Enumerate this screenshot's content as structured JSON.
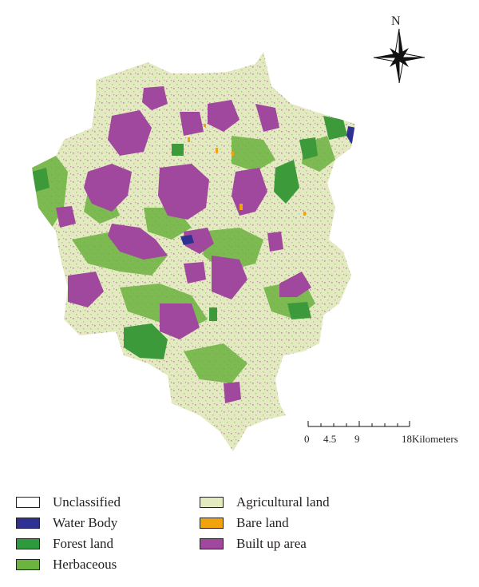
{
  "north_arrow": {
    "label": "N",
    "icon": "north-arrow-icon"
  },
  "scale_bar": {
    "ticks": [
      "0",
      "4.5",
      "9",
      "18Kilometers"
    ]
  },
  "legend": [
    {
      "label": "Unclassified",
      "color": "#ffffff"
    },
    {
      "label": "Water Body",
      "color": "#2e3192"
    },
    {
      "label": "Forest land",
      "color": "#2e9a3e"
    },
    {
      "label": "Herbaceous",
      "color": "#6db33f"
    },
    {
      "label": "Agricultural land",
      "color": "#e3eabf"
    },
    {
      "label": "Bare land",
      "color": "#f0a30a"
    },
    {
      "label": "Built up area",
      "color": "#a0479e"
    }
  ],
  "colors": {
    "agricultural": "#e3eabf",
    "built_up": "#a0479e",
    "forest": "#3d9a3b",
    "herbaceous": "#6cb23f",
    "water": "#2e3192",
    "bare": "#f0a30a"
  }
}
